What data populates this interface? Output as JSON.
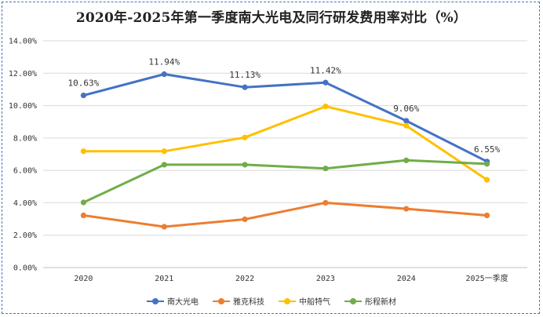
{
  "chart_data": {
    "type": "line",
    "title": "2020年-2025年第一季度南大光电及同行研发费用率对比（%）",
    "categories": [
      "2020",
      "2021",
      "2022",
      "2023",
      "2024",
      "2025一季度"
    ],
    "ylim": [
      0,
      14
    ],
    "y_ticks": [
      0,
      2,
      4,
      6,
      8,
      10,
      12,
      14
    ],
    "y_tick_labels": [
      "0.00%",
      "2.00%",
      "4.00%",
      "6.00%",
      "8.00%",
      "10.00%",
      "12.00%",
      "14.00%"
    ],
    "grid": true,
    "legend_position": "bottom",
    "series": [
      {
        "name": "南大光电",
        "color": "#4472c4",
        "values": [
          10.63,
          11.94,
          11.13,
          11.42,
          9.06,
          6.55
        ],
        "data_labels": [
          "10.63%",
          "11.94%",
          "11.13%",
          "11.42%",
          "9.06%",
          "6.55%"
        ]
      },
      {
        "name": "雅克科技",
        "color": "#ed7d31",
        "values": [
          3.22,
          2.52,
          2.98,
          4.0,
          3.63,
          3.22
        ]
      },
      {
        "name": "中船特气",
        "color": "#ffc000",
        "values": [
          7.18,
          7.18,
          8.03,
          9.95,
          8.76,
          5.42
        ]
      },
      {
        "name": "彤程新材",
        "color": "#70ad47",
        "values": [
          4.02,
          6.35,
          6.35,
          6.12,
          6.62,
          6.4
        ]
      }
    ]
  }
}
